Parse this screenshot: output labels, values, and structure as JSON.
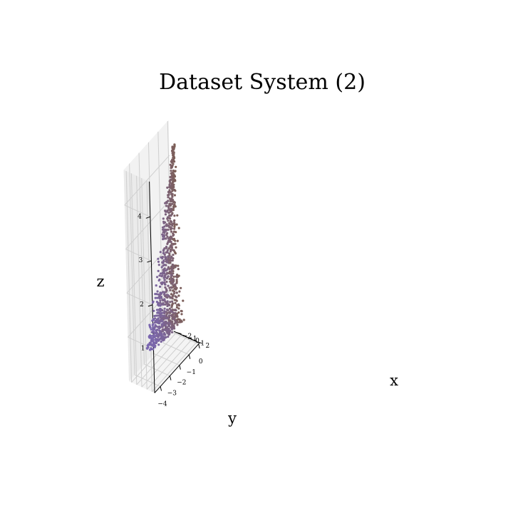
{
  "chart_data": {
    "type": "scatter3d",
    "title": "Dataset System (2)",
    "xlabel": "x",
    "ylabel": "y",
    "zlabel": "z",
    "xlim": [
      -2.5,
      2.5
    ],
    "ylim": [
      -4.6,
      0.1
    ],
    "zlim": [
      0.0,
      4.8
    ],
    "xticks": [
      -2,
      -1,
      0,
      1,
      2
    ],
    "yticks": [
      -4,
      -3,
      -2,
      -1,
      0
    ],
    "zticks": [
      1,
      2,
      3,
      4
    ],
    "xtick_labels": [
      "−2",
      "−1",
      "0",
      "1",
      "2"
    ],
    "ytick_labels": [
      "−4",
      "−3",
      "−2",
      "−1",
      "0"
    ],
    "ztick_labels": [
      "1",
      "2",
      "3",
      "4"
    ],
    "grid": true,
    "color_by": "y",
    "colors": {
      "low_y": "#7b68b8",
      "high_y": "#7d5a2c"
    },
    "point_count": 900,
    "shape": "cone: apex near (x 0, y -0.8, z 4.6); radius 2.0 at z 0; spread shrinks linearly with height"
  }
}
